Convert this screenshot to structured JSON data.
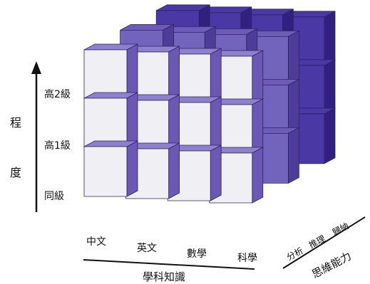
{
  "diagram": {
    "axis_degree": {
      "char_1": "程",
      "char_2": "度"
    },
    "levels": [
      "高2級",
      "高1級",
      "同級"
    ],
    "subjects": [
      "中文",
      "英文",
      "數學",
      "科學"
    ],
    "subject_axis_title": "學科知識",
    "thinking_skills": [
      "分析",
      "推理",
      "歸納"
    ],
    "thinking_axis_title": "思維能力",
    "colors": {
      "cube_front_face": "#f0f0f4",
      "cube_top_face": "#8e80cc",
      "cube_side_face": "#6a58b4",
      "back_top": "#4a38a4",
      "back_side": "#32207e",
      "outline": "#2c2460"
    },
    "grid": {
      "rows": 3,
      "columns": 4,
      "depth": 3
    }
  }
}
